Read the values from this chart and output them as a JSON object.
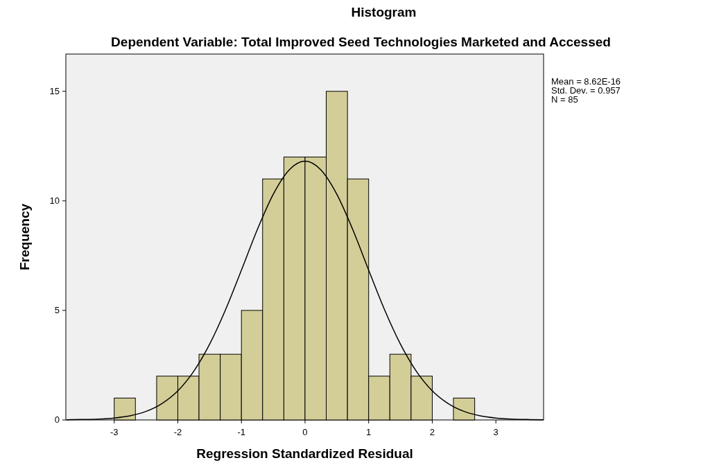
{
  "chart_data": {
    "type": "histogram",
    "title": "Histogram",
    "subtitle": "Dependent Variable: Total Improved Seed Technologies Marketed and Accessed",
    "xlabel": "Regression Standardized Residual",
    "ylabel": "Frequency",
    "annotations": [
      "Mean = 8.62E-16",
      "Std. Dev. = 0.957",
      "N = 85"
    ],
    "bins": [
      -3,
      -2.667,
      -2.333,
      -2,
      -1.667,
      -1.333,
      -1,
      -0.667,
      -0.333,
      0,
      0.333,
      0.667,
      1,
      1.333,
      1.667,
      2,
      2.333,
      2.667
    ],
    "series": [
      {
        "color": "#d3ce98",
        "values": [
          1,
          0,
          2,
          2,
          3,
          3,
          5,
          11,
          12,
          12,
          15,
          11,
          2,
          3,
          2,
          0,
          1
        ]
      },
      {
        "type": "line",
        "color": "#000000",
        "x": [
          -3.75,
          -3.5,
          -3.25,
          -3,
          -2.75,
          -2.5,
          -2.25,
          -2,
          -1.75,
          -1.5,
          -1.25,
          -1,
          -0.75,
          -0.5,
          -0.25,
          0,
          0.25,
          0.5,
          0.75,
          1,
          1.25,
          1.5,
          1.75,
          2,
          2.25,
          2.5,
          2.75,
          3,
          3.25,
          3.5,
          3.75
        ],
        "values": [
          0.01,
          0.02,
          0.04,
          0.09,
          0.19,
          0.39,
          0.75,
          1.33,
          2.22,
          3.46,
          5.03,
          6.84,
          8.69,
          10.3,
          11.41,
          11.81,
          11.41,
          10.3,
          8.69,
          6.84,
          5.03,
          3.46,
          2.22,
          1.33,
          0.75,
          0.39,
          0.19,
          0.09,
          0.04,
          0.02,
          0.01
        ]
      }
    ],
    "xlim": [
      -3.76,
      3.75
    ],
    "ylim": [
      0,
      16.7
    ],
    "xticks": [
      -3,
      -2,
      -1,
      0,
      1,
      2,
      3
    ],
    "yticks": [
      0,
      5,
      10,
      15
    ],
    "grid": false
  }
}
